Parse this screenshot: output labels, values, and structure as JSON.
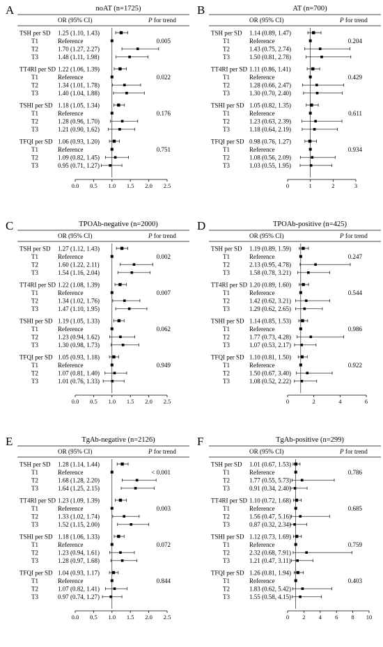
{
  "header": {
    "or_label": "OR (95% CI)",
    "p_prefix": "P",
    "p_suffix": " for trend"
  },
  "row_labels": [
    "TSH per SD",
    "T1",
    "T2",
    "T3",
    "TT4RI per SD",
    "T1",
    "T2",
    "T3",
    "TSHI per SD",
    "T1",
    "T2",
    "T3",
    "TFQI per SD",
    "T1",
    "T2",
    "T3"
  ],
  "chart_data": [
    {
      "letter": "A",
      "type": "forest",
      "title": "noAT (n=1725)",
      "xlim": [
        0,
        2.5
      ],
      "xticks": [
        "0.0",
        "0.5",
        "1.0",
        "1.5",
        "2.0",
        "2.5"
      ],
      "reference_line": 1,
      "rows": [
        {
          "or": 1.25,
          "lo": 1.1,
          "hi": 1.43,
          "text": "1.25 (1.10, 1.43)"
        },
        {
          "or": 1,
          "lo": null,
          "hi": null,
          "text": "Reference"
        },
        {
          "or": 1.7,
          "lo": 1.27,
          "hi": 2.27,
          "text": "1.70 (1.27, 2.27)"
        },
        {
          "or": 1.48,
          "lo": 1.11,
          "hi": 1.98,
          "text": "1.48 (1.11, 1.98)"
        },
        {
          "or": 1.22,
          "lo": 1.06,
          "hi": 1.39,
          "text": "1.22 (1.06, 1.39)"
        },
        {
          "or": 1,
          "lo": null,
          "hi": null,
          "text": "Reference"
        },
        {
          "or": 1.34,
          "lo": 1.01,
          "hi": 1.78,
          "text": "1.34 (1.01, 1.78)"
        },
        {
          "or": 1.4,
          "lo": 1.04,
          "hi": 1.88,
          "text": "1.40 (1.04, 1.88)"
        },
        {
          "or": 1.18,
          "lo": 1.05,
          "hi": 1.34,
          "text": "1.18 (1.05, 1.34)"
        },
        {
          "or": 1,
          "lo": null,
          "hi": null,
          "text": "Reference"
        },
        {
          "or": 1.28,
          "lo": 0.96,
          "hi": 1.7,
          "text": "1.28 (0.96, 1.70)"
        },
        {
          "or": 1.21,
          "lo": 0.9,
          "hi": 1.62,
          "text": "1.21 (0.90, 1.62)"
        },
        {
          "or": 1.06,
          "lo": 0.93,
          "hi": 1.2,
          "text": "1.06 (0.93, 1.20)"
        },
        {
          "or": 1,
          "lo": null,
          "hi": null,
          "text": "Reference"
        },
        {
          "or": 1.09,
          "lo": 0.82,
          "hi": 1.45,
          "text": "1.09 (0.82, 1.45)"
        },
        {
          "or": 0.95,
          "lo": 0.71,
          "hi": 1.27,
          "text": "0.95 (0.71, 1.27)"
        }
      ],
      "p_values": [
        "0.005",
        "0.022",
        "0.176",
        "0.751"
      ]
    },
    {
      "letter": "B",
      "type": "forest",
      "title": "AT (n=700)",
      "xlim": [
        0,
        3
      ],
      "xticks": [
        "0",
        "1",
        "2",
        "3"
      ],
      "reference_line": 1,
      "rows": [
        {
          "or": 1.14,
          "lo": 0.89,
          "hi": 1.47,
          "text": "1.14 (0.89, 1.47)"
        },
        {
          "or": 1,
          "lo": null,
          "hi": null,
          "text": "Reference"
        },
        {
          "or": 1.43,
          "lo": 0.75,
          "hi": 2.74,
          "text": "1.43 (0.75, 2.74)"
        },
        {
          "or": 1.5,
          "lo": 0.81,
          "hi": 2.78,
          "text": "1.50 (0.81, 2.78)"
        },
        {
          "or": 1.11,
          "lo": 0.86,
          "hi": 1.41,
          "text": "1.11 (0.86, 1.41)"
        },
        {
          "or": 1,
          "lo": null,
          "hi": null,
          "text": "Reference"
        },
        {
          "or": 1.28,
          "lo": 0.66,
          "hi": 2.47,
          "text": "1.28 (0.66, 2.47)"
        },
        {
          "or": 1.3,
          "lo": 0.7,
          "hi": 2.4,
          "text": "1.30 (0.70, 2.40)"
        },
        {
          "or": 1.05,
          "lo": 0.82,
          "hi": 1.35,
          "text": "1.05 (0.82, 1.35)"
        },
        {
          "or": 1,
          "lo": null,
          "hi": null,
          "text": "Reference"
        },
        {
          "or": 1.23,
          "lo": 0.63,
          "hi": 2.39,
          "text": "1.23 (0.63, 2.39)"
        },
        {
          "or": 1.18,
          "lo": 0.64,
          "hi": 2.19,
          "text": "1.18 (0.64, 2.19)"
        },
        {
          "or": 0.98,
          "lo": 0.76,
          "hi": 1.27,
          "text": "0.98 (0.76, 1.27)"
        },
        {
          "or": 1,
          "lo": null,
          "hi": null,
          "text": "Reference"
        },
        {
          "or": 1.08,
          "lo": 0.56,
          "hi": 2.09,
          "text": "1.08 (0.56, 2.09)"
        },
        {
          "or": 1.03,
          "lo": 0.55,
          "hi": 1.95,
          "text": "1.03 (0.55, 1.95)"
        }
      ],
      "p_values": [
        "0.204",
        "0.429",
        "0.611",
        "0.934"
      ]
    },
    {
      "letter": "C",
      "type": "forest",
      "title": "TPOAb-negative (n=2000)",
      "xlim": [
        0,
        2.5
      ],
      "xticks": [
        "0.0",
        "0.5",
        "1.0",
        "1.5",
        "2.0",
        "2.5"
      ],
      "reference_line": 1,
      "rows": [
        {
          "or": 1.27,
          "lo": 1.12,
          "hi": 1.43,
          "text": "1.27 (1.12, 1.43)"
        },
        {
          "or": 1,
          "lo": null,
          "hi": null,
          "text": "Reference"
        },
        {
          "or": 1.6,
          "lo": 1.22,
          "hi": 2.11,
          "text": "1.60 (1.22, 2.11)"
        },
        {
          "or": 1.54,
          "lo": 1.16,
          "hi": 2.04,
          "text": "1.54 (1.16, 2.04)"
        },
        {
          "or": 1.22,
          "lo": 1.08,
          "hi": 1.39,
          "text": "1.22 (1.08, 1.39)"
        },
        {
          "or": 1,
          "lo": null,
          "hi": null,
          "text": "Reference"
        },
        {
          "or": 1.34,
          "lo": 1.02,
          "hi": 1.76,
          "text": "1.34 (1.02, 1.76)"
        },
        {
          "or": 1.47,
          "lo": 1.1,
          "hi": 1.95,
          "text": "1.47 (1.10, 1.95)"
        },
        {
          "or": 1.19,
          "lo": 1.05,
          "hi": 1.33,
          "text": "1.19 (1.05, 1.33)"
        },
        {
          "or": 1,
          "lo": null,
          "hi": null,
          "text": "Reference"
        },
        {
          "or": 1.23,
          "lo": 0.94,
          "hi": 1.62,
          "text": "1.23 (0.94, 1.62)"
        },
        {
          "or": 1.3,
          "lo": 0.98,
          "hi": 1.73,
          "text": "1.30 (0.98, 1.73)"
        },
        {
          "or": 1.05,
          "lo": 0.93,
          "hi": 1.18,
          "text": "1.05 (0.93, 1.18)"
        },
        {
          "or": 1,
          "lo": null,
          "hi": null,
          "text": "Reference"
        },
        {
          "or": 1.07,
          "lo": 0.81,
          "hi": 1.4,
          "text": "1.07 (0.81, 1.40)"
        },
        {
          "or": 1.01,
          "lo": 0.76,
          "hi": 1.33,
          "text": "1.01 (0.76, 1.33)"
        }
      ],
      "p_values": [
        "0.002",
        "0.007",
        "0.062",
        "0.949"
      ]
    },
    {
      "letter": "D",
      "type": "forest",
      "title": "TPOAb-positive (n=425)",
      "xlim": [
        0,
        6
      ],
      "xticks": [
        "0",
        "2",
        "4",
        "6"
      ],
      "reference_line": 1,
      "rows": [
        {
          "or": 1.19,
          "lo": 0.89,
          "hi": 1.59,
          "text": "1.19 (0.89, 1.59)"
        },
        {
          "or": 1,
          "lo": null,
          "hi": null,
          "text": "Reference"
        },
        {
          "or": 2.13,
          "lo": 0.95,
          "hi": 4.78,
          "text": "2.13 (0.95, 4.78)"
        },
        {
          "or": 1.58,
          "lo": 0.78,
          "hi": 3.21,
          "text": "1.58 (0.78, 3.21)"
        },
        {
          "or": 1.2,
          "lo": 0.89,
          "hi": 1.6,
          "text": "1.20 (0.89, 1.60)"
        },
        {
          "or": 1,
          "lo": null,
          "hi": null,
          "text": "Reference"
        },
        {
          "or": 1.42,
          "lo": 0.62,
          "hi": 3.21,
          "text": "1.42 (0.62, 3.21)"
        },
        {
          "or": 1.29,
          "lo": 0.62,
          "hi": 2.65,
          "text": "1.29 (0.62, 2.65)"
        },
        {
          "or": 1.14,
          "lo": 0.85,
          "hi": 1.53,
          "text": "1.14 (0.85, 1.53)"
        },
        {
          "or": 1,
          "lo": null,
          "hi": null,
          "text": "Reference"
        },
        {
          "or": 1.77,
          "lo": 0.73,
          "hi": 4.28,
          "text": "1.77 (0.73, 4.28)"
        },
        {
          "or": 1.07,
          "lo": 0.53,
          "hi": 2.17,
          "text": "1.07 (0.53, 2.17)"
        },
        {
          "or": 1.1,
          "lo": 0.81,
          "hi": 1.5,
          "text": "1.10 (0.81, 1.50)"
        },
        {
          "or": 1,
          "lo": null,
          "hi": null,
          "text": "Reference"
        },
        {
          "or": 1.5,
          "lo": 0.67,
          "hi": 3.4,
          "text": "1.50 (0.67, 3.40)"
        },
        {
          "or": 1.08,
          "lo": 0.52,
          "hi": 2.22,
          "text": "1.08 (0.52, 2.22)"
        }
      ],
      "p_values": [
        "0.247",
        "0.544",
        "0.986",
        "0.922"
      ]
    },
    {
      "letter": "E",
      "type": "forest",
      "title": "TgAb-negative (n=2126)",
      "xlim": [
        0,
        2.5
      ],
      "xticks": [
        "0.0",
        "0.5",
        "1.0",
        "1.5",
        "2.0",
        "2.5"
      ],
      "reference_line": 1,
      "rows": [
        {
          "or": 1.28,
          "lo": 1.14,
          "hi": 1.44,
          "text": "1.28 (1.14, 1.44)"
        },
        {
          "or": 1,
          "lo": null,
          "hi": null,
          "text": "Reference"
        },
        {
          "or": 1.68,
          "lo": 1.28,
          "hi": 2.2,
          "text": "1.68 (1.28, 2.20)"
        },
        {
          "or": 1.64,
          "lo": 1.25,
          "hi": 2.15,
          "text": "1.64 (1.25, 2.15)"
        },
        {
          "or": 1.23,
          "lo": 1.09,
          "hi": 1.39,
          "text": "1.23 (1.09, 1.39)"
        },
        {
          "or": 1,
          "lo": null,
          "hi": null,
          "text": "Reference"
        },
        {
          "or": 1.33,
          "lo": 1.02,
          "hi": 1.74,
          "text": "1.33 (1.02, 1.74)"
        },
        {
          "or": 1.52,
          "lo": 1.15,
          "hi": 2.0,
          "text": "1.52 (1.15, 2.00)"
        },
        {
          "or": 1.18,
          "lo": 1.06,
          "hi": 1.33,
          "text": "1.18 (1.06, 1.33)"
        },
        {
          "or": 1,
          "lo": null,
          "hi": null,
          "text": "Reference"
        },
        {
          "or": 1.23,
          "lo": 0.94,
          "hi": 1.61,
          "text": "1.23 (0.94, 1.61)"
        },
        {
          "or": 1.28,
          "lo": 0.97,
          "hi": 1.68,
          "text": "1.28 (0.97, 1.68)"
        },
        {
          "or": 1.04,
          "lo": 0.93,
          "hi": 1.17,
          "text": "1.04 (0.93, 1.17)"
        },
        {
          "or": 1,
          "lo": null,
          "hi": null,
          "text": "Reference"
        },
        {
          "or": 1.07,
          "lo": 0.82,
          "hi": 1.41,
          "text": "1.07 (0.82, 1.41)"
        },
        {
          "or": 0.97,
          "lo": 0.74,
          "hi": 1.27,
          "text": "0.97 (0.74, 1.27)"
        }
      ],
      "p_values": [
        "< 0.001",
        "0.003",
        "0.072",
        "0.844"
      ]
    },
    {
      "letter": "F",
      "type": "forest",
      "title": "TgAb-positive (n=299)",
      "xlim": [
        0,
        10
      ],
      "xticks": [
        "0",
        "2",
        "4",
        "6",
        "8",
        "10"
      ],
      "reference_line": 1,
      "rows": [
        {
          "or": 1.01,
          "lo": 0.67,
          "hi": 1.53,
          "text": "1.01 (0.67, 1.53)"
        },
        {
          "or": 1,
          "lo": null,
          "hi": null,
          "text": "Reference"
        },
        {
          "or": 1.77,
          "lo": 0.55,
          "hi": 5.73,
          "text": "1.77 (0.55, 5.73)"
        },
        {
          "or": 0.91,
          "lo": 0.34,
          "hi": 2.4,
          "text": "0.91 (0.34, 2.40)"
        },
        {
          "or": 1.1,
          "lo": 0.72,
          "hi": 1.68,
          "text": "1.10 (0.72, 1.68)"
        },
        {
          "or": 1,
          "lo": null,
          "hi": null,
          "text": "Reference"
        },
        {
          "or": 1.56,
          "lo": 0.47,
          "hi": 5.16,
          "text": "1.56 (0.47, 5.16)"
        },
        {
          "or": 0.87,
          "lo": 0.32,
          "hi": 2.34,
          "text": "0.87 (0.32, 2.34)"
        },
        {
          "or": 1.12,
          "lo": 0.73,
          "hi": 1.69,
          "text": "1.12 (0.73, 1.69)"
        },
        {
          "or": 1,
          "lo": null,
          "hi": null,
          "text": "Reference"
        },
        {
          "or": 2.32,
          "lo": 0.68,
          "hi": 7.91,
          "text": "2.32 (0.68, 7.91)"
        },
        {
          "or": 1.21,
          "lo": 0.47,
          "hi": 3.11,
          "text": "1.21 (0.47, 3.11)"
        },
        {
          "or": 1.26,
          "lo": 0.81,
          "hi": 1.94,
          "text": "1.26 (0.81, 1.94)"
        },
        {
          "or": 1,
          "lo": null,
          "hi": null,
          "text": "Reference"
        },
        {
          "or": 1.83,
          "lo": 0.62,
          "hi": 5.42,
          "text": "1.83 (0.62, 5.42)"
        },
        {
          "or": 1.55,
          "lo": 0.58,
          "hi": 4.15,
          "text": "1.55 (0.58, 4.15)"
        }
      ],
      "p_values": [
        "0.786",
        "0.685",
        "0.759",
        "0.403"
      ]
    }
  ]
}
